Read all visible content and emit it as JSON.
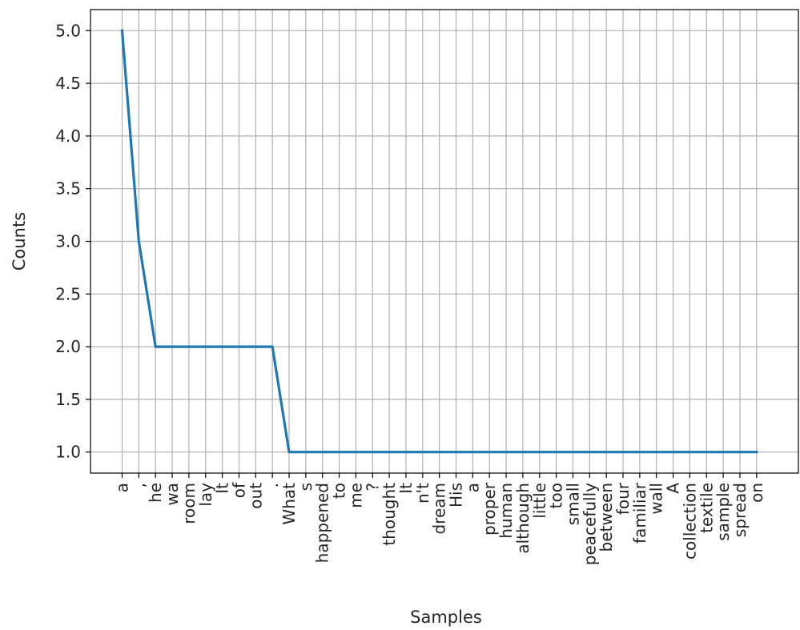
{
  "chart_data": {
    "type": "line",
    "title": "",
    "xlabel": "Samples",
    "ylabel": "Counts",
    "categories": [
      "a",
      ",",
      "he",
      "wa",
      "room",
      "lay",
      "It",
      "of",
      "out",
      ".",
      "What",
      "s",
      "happened",
      "to",
      "me",
      "?",
      "thought",
      "It",
      "n't",
      "dream",
      "His",
      "a",
      "proper",
      "human",
      "although",
      "little",
      "too",
      "small",
      "peacefully",
      "between",
      "four",
      "familiar",
      "wall",
      "A",
      "collection",
      "textile",
      "sample",
      "spread",
      "on"
    ],
    "values": [
      5,
      3,
      2,
      2,
      2,
      2,
      2,
      2,
      2,
      2,
      1,
      1,
      1,
      1,
      1,
      1,
      1,
      1,
      1,
      1,
      1,
      1,
      1,
      1,
      1,
      1,
      1,
      1,
      1,
      1,
      1,
      1,
      1,
      1,
      1,
      1,
      1,
      1,
      1
    ],
    "yticks": [
      "1.0",
      "1.5",
      "2.0",
      "2.5",
      "3.0",
      "3.5",
      "4.0",
      "4.5",
      "5.0"
    ],
    "ylim": [
      0.8,
      5.2
    ],
    "grid": true,
    "line_color": "#1f77b4",
    "grid_color": "#b0b0b0"
  }
}
